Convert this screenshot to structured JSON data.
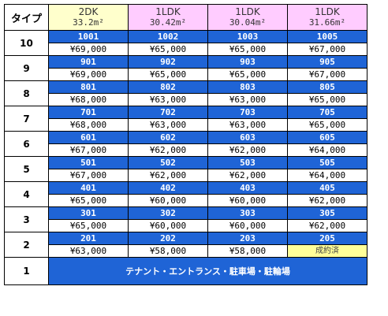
{
  "header": {
    "type_label": "タイプ",
    "columns": [
      {
        "layout": "2DK",
        "area": "33.2m²",
        "color": "#ffffcc"
      },
      {
        "layout": "1LDK",
        "area": "30.42m²",
        "color": "#ffccff"
      },
      {
        "layout": "1LDK",
        "area": "30.04m²",
        "color": "#ffccff"
      },
      {
        "layout": "1LDK",
        "area": "31.66m²",
        "color": "#ffccff"
      }
    ]
  },
  "floors": [
    {
      "floor": "10",
      "units": [
        "1001",
        "1002",
        "1003",
        "1005"
      ],
      "prices": [
        "¥69,000",
        "¥65,000",
        "¥65,000",
        "¥67,000"
      ]
    },
    {
      "floor": "9",
      "units": [
        "901",
        "902",
        "903",
        "905"
      ],
      "prices": [
        "¥69,000",
        "¥65,000",
        "¥65,000",
        "¥67,000"
      ]
    },
    {
      "floor": "8",
      "units": [
        "801",
        "802",
        "803",
        "805"
      ],
      "prices": [
        "¥68,000",
        "¥63,000",
        "¥63,000",
        "¥65,000"
      ]
    },
    {
      "floor": "7",
      "units": [
        "701",
        "702",
        "703",
        "705"
      ],
      "prices": [
        "¥68,000",
        "¥63,000",
        "¥63,000",
        "¥65,000"
      ]
    },
    {
      "floor": "6",
      "units": [
        "601",
        "602",
        "603",
        "605"
      ],
      "prices": [
        "¥67,000",
        "¥62,000",
        "¥62,000",
        "¥64,000"
      ]
    },
    {
      "floor": "5",
      "units": [
        "501",
        "502",
        "503",
        "505"
      ],
      "prices": [
        "¥67,000",
        "¥62,000",
        "¥62,000",
        "¥64,000"
      ]
    },
    {
      "floor": "4",
      "units": [
        "401",
        "402",
        "403",
        "405"
      ],
      "prices": [
        "¥65,000",
        "¥60,000",
        "¥60,000",
        "¥62,000"
      ]
    },
    {
      "floor": "3",
      "units": [
        "301",
        "302",
        "303",
        "305"
      ],
      "prices": [
        "¥65,000",
        "¥60,000",
        "¥60,000",
        "¥62,000"
      ]
    },
    {
      "floor": "2",
      "units": [
        "201",
        "202",
        "203",
        "205"
      ],
      "prices": [
        "¥63,000",
        "¥58,000",
        "¥58,000",
        "成約済"
      ],
      "sold": [
        false,
        false,
        false,
        true
      ]
    }
  ],
  "ground": {
    "floor": "1",
    "label": "テナント・エントランス・駐車場・駐輪場"
  },
  "colors": {
    "unit_bg": "#1f64d6",
    "sold_bg": "#ffff99",
    "header_2dk": "#ffffcc",
    "header_1ldk": "#ffccff"
  }
}
